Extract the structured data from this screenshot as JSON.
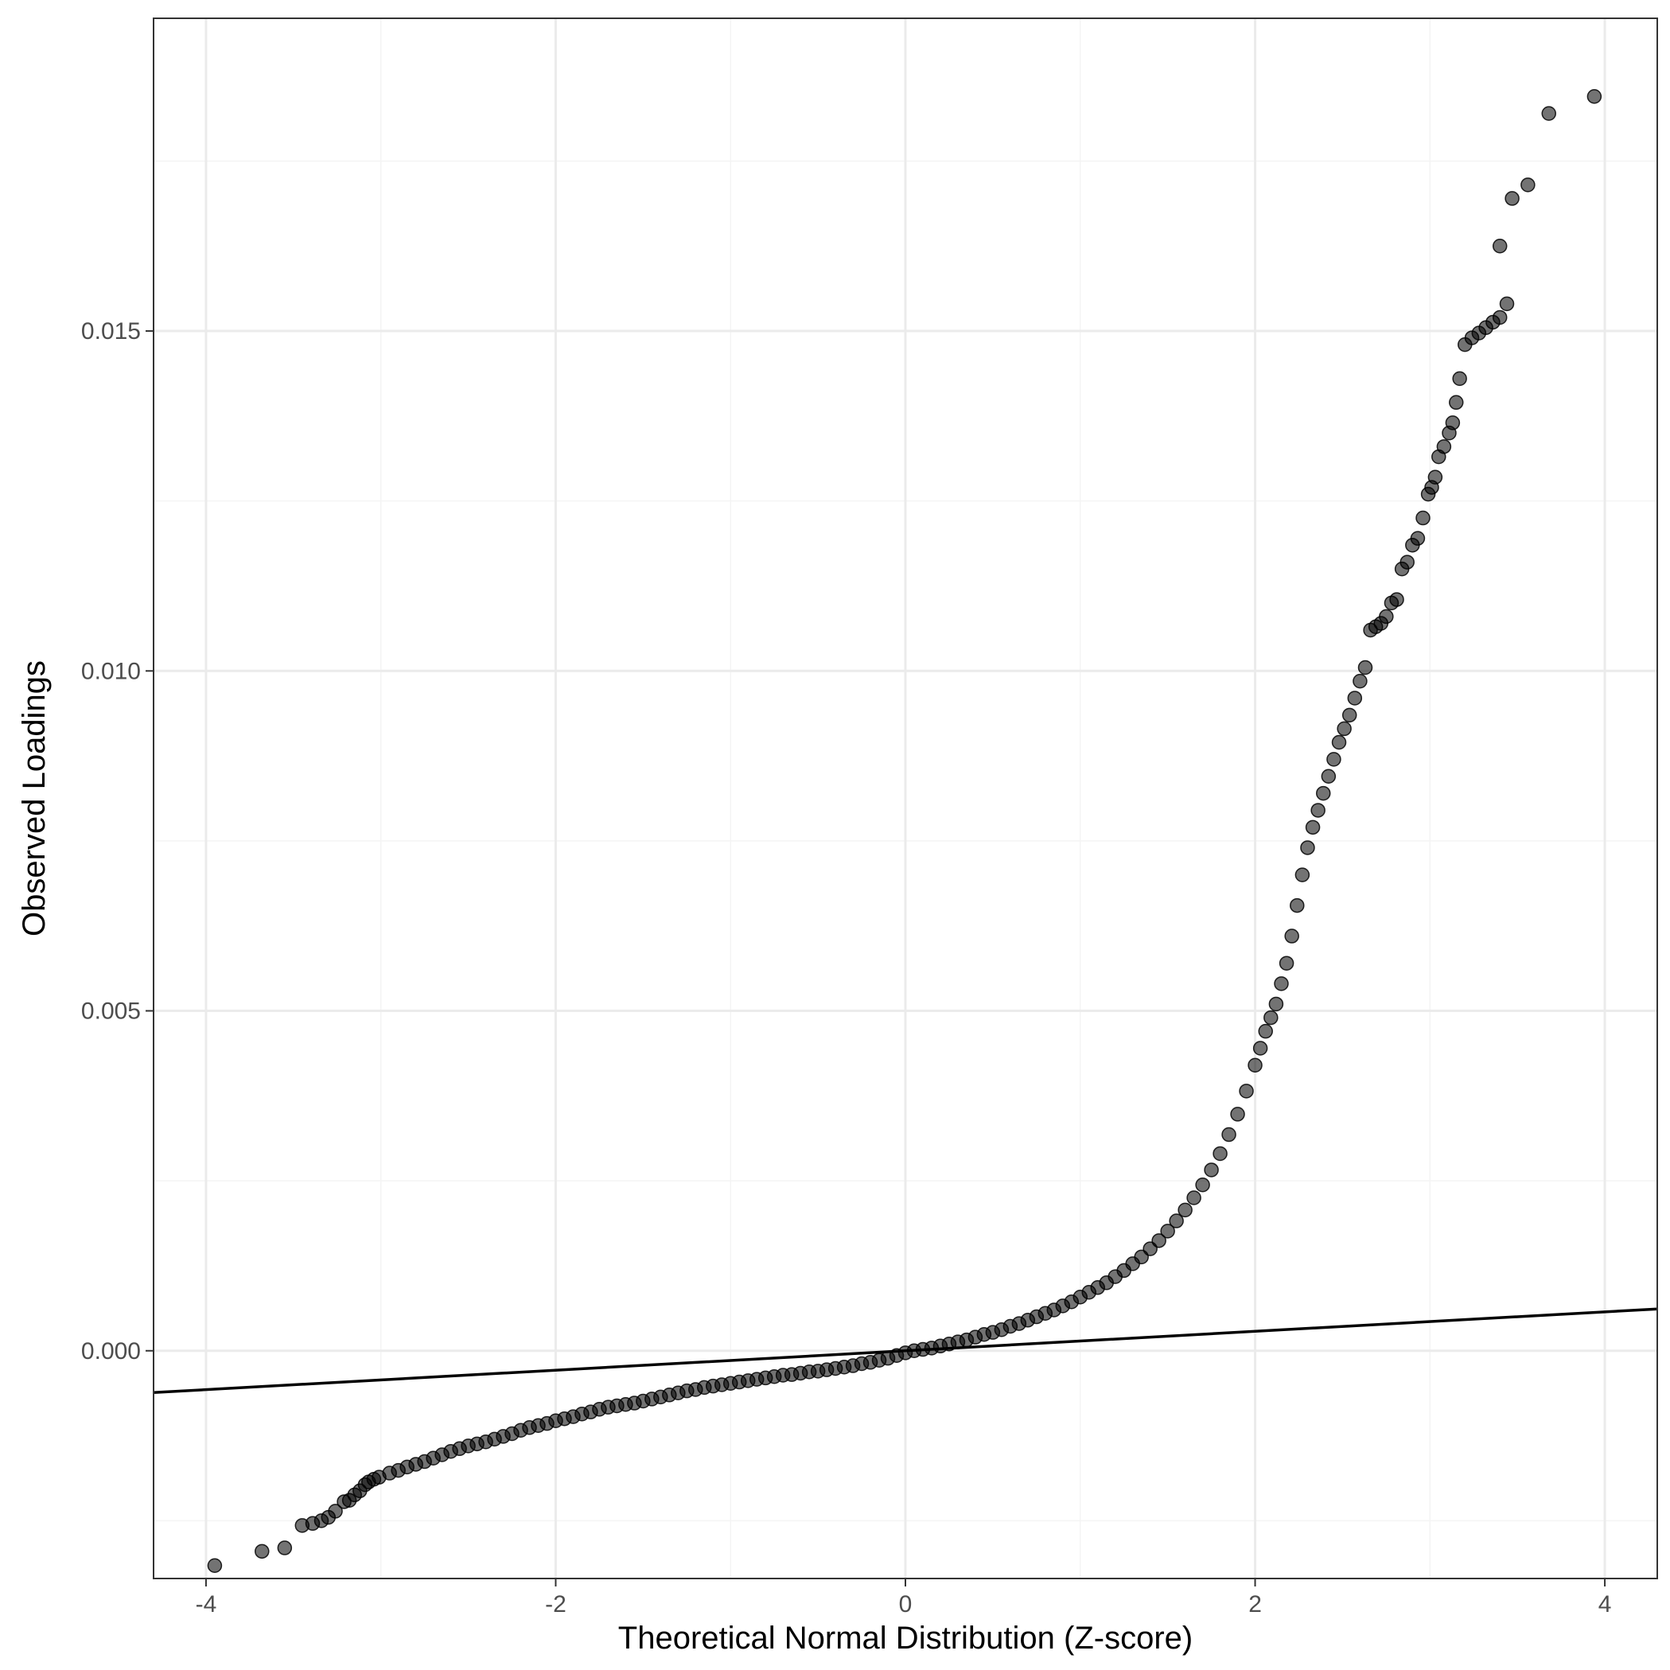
{
  "colors": {
    "background": "#ffffff",
    "panel_border": "#333333",
    "grid_major": "#ebebeb",
    "grid_minor": "#f4f4f4",
    "tick_text": "#4d4d4d",
    "title_text": "#000000",
    "point_fill": "#000000",
    "point_opacity": 0.55,
    "reference_line": "#000000"
  },
  "chart_data": {
    "type": "scatter",
    "title": "",
    "xlabel": "Theoretical Normal Distribution (Z-score)",
    "ylabel": "Observed Loadings",
    "xlim": [
      -4.3,
      4.3
    ],
    "ylim": [
      -0.00335,
      0.0196
    ],
    "x_ticks": [
      -4,
      -2,
      0,
      2,
      4
    ],
    "x_tick_labels": [
      "-4",
      "-2",
      "0",
      "2",
      "4"
    ],
    "y_ticks": [
      0.0,
      0.005,
      0.01,
      0.015
    ],
    "y_tick_labels": [
      "0.000",
      "0.005",
      "0.010",
      "0.015"
    ],
    "grid": true,
    "legend": "none",
    "reference_line": {
      "slope": 0.000143,
      "intercept": 0.0
    },
    "points": [
      [
        -3.95,
        -0.00316
      ],
      [
        -3.68,
        -0.00295
      ],
      [
        -3.55,
        -0.0029
      ],
      [
        -3.45,
        -0.00257
      ],
      [
        -3.39,
        -0.00254
      ],
      [
        -3.34,
        -0.0025
      ],
      [
        -3.3,
        -0.00245
      ],
      [
        -3.26,
        -0.00236
      ],
      [
        -3.21,
        -0.00222
      ],
      [
        -3.18,
        -0.0022
      ],
      [
        -3.15,
        -0.00212
      ],
      [
        -3.12,
        -0.00206
      ],
      [
        -3.09,
        -0.00197
      ],
      [
        -3.07,
        -0.00193
      ],
      [
        -3.04,
        -0.00189
      ],
      [
        -3.01,
        -0.00186
      ],
      [
        -2.95,
        -0.0018
      ],
      [
        -2.9,
        -0.00176
      ],
      [
        -2.85,
        -0.00171
      ],
      [
        -2.8,
        -0.00167
      ],
      [
        -2.75,
        -0.00163
      ],
      [
        -2.7,
        -0.00158
      ],
      [
        -2.65,
        -0.00153
      ],
      [
        -2.6,
        -0.00148
      ],
      [
        -2.55,
        -0.00144
      ],
      [
        -2.5,
        -0.0014
      ],
      [
        -2.45,
        -0.00137
      ],
      [
        -2.4,
        -0.00134
      ],
      [
        -2.35,
        -0.0013
      ],
      [
        -2.3,
        -0.00126
      ],
      [
        -2.25,
        -0.00122
      ],
      [
        -2.2,
        -0.00117
      ],
      [
        -2.15,
        -0.00113
      ],
      [
        -2.1,
        -0.0011
      ],
      [
        -2.05,
        -0.00107
      ],
      [
        -2.0,
        -0.00103
      ],
      [
        -1.95,
        -0.001
      ],
      [
        -1.9,
        -0.00097
      ],
      [
        -1.85,
        -0.00093
      ],
      [
        -1.8,
        -0.0009
      ],
      [
        -1.75,
        -0.00086
      ],
      [
        -1.7,
        -0.00083
      ],
      [
        -1.65,
        -0.00081
      ],
      [
        -1.6,
        -0.00079
      ],
      [
        -1.55,
        -0.00077
      ],
      [
        -1.5,
        -0.00074
      ],
      [
        -1.45,
        -0.00071
      ],
      [
        -1.4,
        -0.00068
      ],
      [
        -1.35,
        -0.00065
      ],
      [
        -1.3,
        -0.00062
      ],
      [
        -1.25,
        -0.00059
      ],
      [
        -1.2,
        -0.00057
      ],
      [
        -1.15,
        -0.00054
      ],
      [
        -1.1,
        -0.00052
      ],
      [
        -1.05,
        -0.0005
      ],
      [
        -1.0,
        -0.00048
      ],
      [
        -0.95,
        -0.00046
      ],
      [
        -0.9,
        -0.00044
      ],
      [
        -0.85,
        -0.00042
      ],
      [
        -0.8,
        -0.0004
      ],
      [
        -0.75,
        -0.00038
      ],
      [
        -0.7,
        -0.00036
      ],
      [
        -0.65,
        -0.00035
      ],
      [
        -0.6,
        -0.00033
      ],
      [
        -0.55,
        -0.00031
      ],
      [
        -0.5,
        -0.0003
      ],
      [
        -0.45,
        -0.00028
      ],
      [
        -0.4,
        -0.00026
      ],
      [
        -0.35,
        -0.00024
      ],
      [
        -0.3,
        -0.00022
      ],
      [
        -0.25,
        -0.00019
      ],
      [
        -0.2,
        -0.00017
      ],
      [
        -0.15,
        -0.00014
      ],
      [
        -0.1,
        -0.00011
      ],
      [
        -0.05,
        -7e-05
      ],
      [
        0.0,
        -3e-05
      ],
      [
        0.05,
        0.0
      ],
      [
        0.1,
        2e-05
      ],
      [
        0.15,
        4e-05
      ],
      [
        0.2,
        7e-05
      ],
      [
        0.25,
        0.0001
      ],
      [
        0.3,
        0.00013
      ],
      [
        0.35,
        0.00016
      ],
      [
        0.4,
        0.0002
      ],
      [
        0.45,
        0.00024
      ],
      [
        0.5,
        0.00027
      ],
      [
        0.55,
        0.00031
      ],
      [
        0.6,
        0.00036
      ],
      [
        0.65,
        0.0004
      ],
      [
        0.7,
        0.00045
      ],
      [
        0.75,
        0.0005
      ],
      [
        0.8,
        0.00055
      ],
      [
        0.85,
        0.0006
      ],
      [
        0.9,
        0.00066
      ],
      [
        0.95,
        0.00072
      ],
      [
        1.0,
        0.00079
      ],
      [
        1.05,
        0.00086
      ],
      [
        1.1,
        0.00093
      ],
      [
        1.15,
        0.001
      ],
      [
        1.2,
        0.00109
      ],
      [
        1.25,
        0.00118
      ],
      [
        1.3,
        0.00128
      ],
      [
        1.35,
        0.00138
      ],
      [
        1.4,
        0.0015
      ],
      [
        1.45,
        0.00162
      ],
      [
        1.5,
        0.00176
      ],
      [
        1.55,
        0.00191
      ],
      [
        1.6,
        0.00207
      ],
      [
        1.65,
        0.00225
      ],
      [
        1.7,
        0.00244
      ],
      [
        1.75,
        0.00266
      ],
      [
        1.8,
        0.0029
      ],
      [
        1.85,
        0.00318
      ],
      [
        1.9,
        0.00348
      ],
      [
        1.95,
        0.00382
      ],
      [
        2.0,
        0.0042
      ],
      [
        2.03,
        0.00445
      ],
      [
        2.06,
        0.0047
      ],
      [
        2.09,
        0.0049
      ],
      [
        2.12,
        0.0051
      ],
      [
        2.15,
        0.0054
      ],
      [
        2.18,
        0.0057
      ],
      [
        2.21,
        0.0061
      ],
      [
        2.24,
        0.00655
      ],
      [
        2.27,
        0.007
      ],
      [
        2.3,
        0.0074
      ],
      [
        2.33,
        0.0077
      ],
      [
        2.36,
        0.00795
      ],
      [
        2.39,
        0.0082
      ],
      [
        2.42,
        0.00845
      ],
      [
        2.45,
        0.0087
      ],
      [
        2.48,
        0.00895
      ],
      [
        2.51,
        0.00915
      ],
      [
        2.54,
        0.00935
      ],
      [
        2.57,
        0.0096
      ],
      [
        2.6,
        0.00985
      ],
      [
        2.63,
        0.01005
      ],
      [
        2.66,
        0.0106
      ],
      [
        2.69,
        0.01065
      ],
      [
        2.72,
        0.0107
      ],
      [
        2.75,
        0.0108
      ],
      [
        2.78,
        0.011
      ],
      [
        2.81,
        0.01105
      ],
      [
        2.84,
        0.0115
      ],
      [
        2.87,
        0.0116
      ],
      [
        2.9,
        0.01185
      ],
      [
        2.93,
        0.01195
      ],
      [
        2.96,
        0.01225
      ],
      [
        2.99,
        0.0126
      ],
      [
        3.01,
        0.0127
      ],
      [
        3.03,
        0.01285
      ],
      [
        3.05,
        0.01315
      ],
      [
        3.08,
        0.0133
      ],
      [
        3.11,
        0.0135
      ],
      [
        3.13,
        0.01365
      ],
      [
        3.15,
        0.01395
      ],
      [
        3.17,
        0.0143
      ],
      [
        3.2,
        0.0148
      ],
      [
        3.24,
        0.0149
      ],
      [
        3.28,
        0.01497
      ],
      [
        3.32,
        0.01505
      ],
      [
        3.36,
        0.01513
      ],
      [
        3.4,
        0.0152
      ],
      [
        3.44,
        0.0154
      ],
      [
        3.4,
        0.01625
      ],
      [
        3.47,
        0.01695
      ],
      [
        3.56,
        0.01715
      ],
      [
        3.68,
        0.0182
      ],
      [
        3.94,
        0.01845
      ]
    ]
  }
}
